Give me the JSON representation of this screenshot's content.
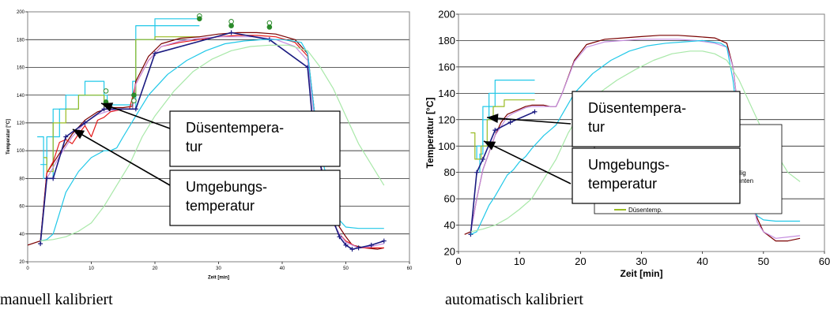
{
  "captions": {
    "left": "manuell kalibriert",
    "right": "automatisch kalibriert"
  },
  "chart_data": [
    {
      "type": "line",
      "xlabel": "Zeit [min]",
      "ylabel": "Temperatur [°C]",
      "xlim": [
        0,
        60
      ],
      "ylim": [
        20,
        200
      ],
      "xticks": [
        0,
        10,
        20,
        30,
        40,
        50,
        60
      ],
      "yticks": [
        20,
        40,
        60,
        80,
        100,
        120,
        140,
        160,
        180,
        200
      ],
      "grid": "horizontal",
      "annotations": [
        {
          "id": "duesentemperatur",
          "text": [
            "Düsentempera-",
            "tur"
          ]
        },
        {
          "id": "umgebungstemperatur",
          "text": [
            "Umgebungs-",
            "temperatur"
          ]
        }
      ],
      "colors": {
        "cyan": "#20c8e8",
        "olive": "#99bb22",
        "darkred": "#7a0000",
        "red": "#e41a1a",
        "violet": "#c58ee0",
        "navy": "#1a1a80",
        "lightgreen": "#a8e8a8",
        "markers": "#2a8a2a"
      },
      "series": [
        {
          "color": "cyan",
          "style": "step",
          "x": [
            1.5,
            2.5,
            2.5,
            4,
            4,
            6,
            6,
            9,
            9,
            12,
            12,
            16.5,
            16.5,
            17,
            17,
            20,
            20,
            27,
            27
          ],
          "y": [
            110,
            110,
            80,
            80,
            130,
            130,
            140,
            140,
            150,
            150,
            133,
            133,
            130,
            130,
            180,
            180,
            195,
            195,
            198
          ]
        },
        {
          "color": "cyan",
          "style": "step",
          "x": [
            2,
            3,
            3,
            5,
            5,
            8,
            8,
            12.5,
            12.5,
            16.5,
            16.5,
            17,
            17,
            27
          ],
          "y": [
            90,
            90,
            110,
            110,
            130,
            130,
            140,
            140,
            130,
            130,
            150,
            150,
            190,
            190
          ]
        },
        {
          "color": "olive",
          "style": "step",
          "x": [
            2.5,
            3,
            3,
            4,
            4,
            6,
            6,
            8,
            8,
            12,
            12,
            16.5,
            16.5,
            17,
            17,
            20,
            20,
            27
          ],
          "y": [
            95,
            95,
            85,
            85,
            120,
            120,
            130,
            130,
            140,
            140,
            130,
            130,
            140,
            140,
            180,
            180,
            182,
            182
          ]
        },
        {
          "color": "darkred",
          "x": [
            0,
            2,
            3,
            5,
            7,
            9,
            11,
            13,
            15,
            16.5,
            17,
            19,
            21,
            24,
            27,
            30,
            33,
            36,
            39,
            42,
            44,
            45,
            46,
            47,
            48,
            49,
            50,
            51,
            53,
            55,
            56
          ],
          "y": [
            32,
            35,
            84,
            98,
            112,
            122,
            128,
            131,
            131,
            132,
            150,
            168,
            177,
            181,
            182,
            184,
            185,
            185,
            184,
            180,
            170,
            130,
            90,
            70,
            55,
            45,
            38,
            32,
            30,
            29,
            30
          ]
        },
        {
          "color": "red",
          "x": [
            2,
            3,
            4,
            5,
            6,
            7,
            8,
            9,
            10,
            11,
            12,
            13,
            14,
            15,
            16,
            17,
            19,
            21,
            24,
            27,
            30,
            33,
            36,
            39,
            42,
            44,
            45,
            46,
            47,
            48,
            49,
            50,
            52,
            54,
            56
          ],
          "y": [
            33,
            84,
            92,
            106,
            108,
            105,
            112,
            118,
            110,
            122,
            124,
            128,
            129,
            130,
            130,
            148,
            165,
            175,
            178,
            180,
            182,
            183,
            183,
            182,
            178,
            168,
            130,
            90,
            60,
            48,
            40,
            35,
            30,
            30,
            30
          ]
        },
        {
          "color": "violet",
          "x": [
            2,
            3,
            5,
            7,
            9,
            11,
            13,
            15,
            16.5,
            17,
            19,
            21,
            24,
            27,
            30,
            33,
            36,
            39,
            42,
            44,
            45,
            46,
            47,
            48,
            49,
            50,
            52,
            54,
            56
          ],
          "y": [
            34,
            80,
            96,
            110,
            120,
            126,
            129,
            130,
            130,
            148,
            165,
            175,
            179,
            181,
            182,
            182,
            182,
            180,
            175,
            165,
            125,
            90,
            65,
            48,
            40,
            34,
            30,
            31,
            33
          ]
        },
        {
          "color": "navy",
          "markers": true,
          "x": [
            2,
            3,
            4,
            6,
            9,
            12,
            17,
            20,
            32,
            38,
            44,
            45,
            47,
            48,
            49,
            50,
            51,
            52,
            54,
            56
          ],
          "y": [
            33,
            80,
            80,
            110,
            120,
            130,
            130,
            170,
            185,
            180,
            160,
            110,
            70,
            50,
            38,
            32,
            29,
            30,
            32,
            35
          ]
        },
        {
          "color": "cyan",
          "x": [
            2,
            3,
            4,
            5,
            6,
            8,
            10,
            12,
            13,
            14,
            15,
            17,
            19,
            22,
            25,
            28,
            31,
            34,
            37,
            40,
            43,
            44,
            45,
            46,
            47,
            48,
            49,
            50,
            52,
            54,
            56
          ],
          "y": [
            35,
            36,
            40,
            55,
            70,
            85,
            95,
            100,
            100,
            102,
            110,
            125,
            140,
            155,
            165,
            172,
            177,
            179,
            180,
            180,
            178,
            170,
            130,
            100,
            80,
            60,
            50,
            45,
            44,
            44,
            44
          ]
        },
        {
          "color": "lightgreen",
          "x": [
            2,
            4,
            6,
            8,
            10,
            12,
            14,
            16,
            18,
            20,
            23,
            26,
            29,
            32,
            35,
            38,
            41,
            44,
            46,
            48,
            50,
            52,
            54,
            56
          ],
          "y": [
            35,
            36,
            38,
            42,
            48,
            60,
            75,
            90,
            110,
            125,
            143,
            157,
            166,
            172,
            175,
            176,
            176,
            172,
            160,
            145,
            125,
            105,
            90,
            75
          ]
        }
      ],
      "point_markers": [
        {
          "x": 12.3,
          "y": 143,
          "filled": false
        },
        {
          "x": 12.3,
          "y": 135,
          "filled": true
        },
        {
          "x": 16.7,
          "y": 140,
          "filled": true
        },
        {
          "x": 16.7,
          "y": 136,
          "filled": false
        },
        {
          "x": 27,
          "y": 197,
          "filled": false
        },
        {
          "x": 27,
          "y": 195,
          "filled": true
        },
        {
          "x": 32,
          "y": 193,
          "filled": false
        },
        {
          "x": 32,
          "y": 190,
          "filled": true
        },
        {
          "x": 38,
          "y": 192,
          "filled": false
        },
        {
          "x": 38,
          "y": 189,
          "filled": true
        }
      ]
    },
    {
      "type": "line",
      "xlabel": "Zeit [min]",
      "ylabel": "Temperatur [°C]",
      "xlim": [
        0,
        60
      ],
      "ylim": [
        20,
        200
      ],
      "xticks": [
        0,
        10,
        20,
        30,
        40,
        50,
        60
      ],
      "yticks": [
        20,
        40,
        60,
        80,
        100,
        120,
        140,
        160,
        180,
        200
      ],
      "grid": "horizontal",
      "legend_fragments": [
        "dig",
        "unten",
        "Düsentemp."
      ],
      "annotations": [
        {
          "id": "duesentemperatur",
          "text": [
            "Düsentempera-",
            "tur"
          ]
        },
        {
          "id": "umgebungstemperatur",
          "text": [
            "Umgebungs-",
            "temperatur"
          ]
        }
      ],
      "colors": {
        "cyan": "#20c8e8",
        "olive": "#99bb22",
        "darkred": "#7a0000",
        "violet": "#c58ee0",
        "navy": "#1a1a80",
        "lightgreen": "#a8e8a8"
      },
      "series": [
        {
          "color": "cyan",
          "style": "step",
          "x": [
            3.5,
            3.5,
            4,
            4,
            5,
            5,
            6,
            6,
            7,
            7,
            12.5
          ],
          "y": [
            80,
            94,
            94,
            130,
            130,
            140,
            140,
            150,
            150,
            150,
            150
          ]
        },
        {
          "color": "cyan",
          "style": "step",
          "x": [
            3,
            3,
            4,
            4,
            5,
            5,
            6,
            6,
            12.5
          ],
          "y": [
            90,
            100,
            100,
            120,
            120,
            130,
            130,
            140,
            140
          ]
        },
        {
          "color": "olive",
          "style": "step",
          "x": [
            2,
            2.7,
            2.7,
            3.7,
            3.7,
            4.7,
            4.7,
            5.7,
            5.7,
            7.5,
            7.5,
            12.5
          ],
          "y": [
            110,
            110,
            90,
            90,
            100,
            100,
            120,
            120,
            130,
            130,
            135,
            135
          ]
        },
        {
          "color": "darkred",
          "x": [
            1,
            2,
            3,
            4,
            5,
            6,
            7,
            8,
            9,
            10,
            11,
            12,
            13,
            14,
            15,
            16,
            17,
            19,
            21,
            24,
            27,
            30,
            33,
            36,
            39,
            42,
            44,
            45,
            46,
            47,
            48,
            49,
            50,
            52,
            54,
            56
          ],
          "y": [
            33,
            35,
            60,
            82,
            95,
            108,
            118,
            124,
            126,
            128,
            130,
            131,
            131,
            131,
            130,
            130,
            140,
            165,
            177,
            181,
            182,
            183,
            184,
            184,
            183,
            182,
            178,
            160,
            120,
            90,
            65,
            45,
            35,
            28,
            28,
            30
          ]
        },
        {
          "color": "violet",
          "x": [
            2,
            3,
            4,
            5,
            6,
            7,
            8,
            9,
            10,
            11,
            12,
            13,
            14,
            15,
            16,
            17,
            19,
            21,
            24,
            27,
            30,
            33,
            36,
            39,
            42,
            44,
            45,
            46,
            47,
            48,
            49,
            50,
            52,
            54,
            56
          ],
          "y": [
            34,
            60,
            82,
            95,
            108,
            115,
            122,
            125,
            127,
            129,
            130,
            130,
            130,
            130,
            130,
            140,
            164,
            175,
            179,
            180,
            181,
            181,
            181,
            180,
            178,
            175,
            160,
            120,
            85,
            60,
            42,
            35,
            30,
            31,
            32
          ]
        },
        {
          "color": "navy",
          "markers": true,
          "x": [
            2,
            3,
            4,
            6,
            8.5,
            12.5
          ],
          "y": [
            33,
            80,
            90,
            112,
            118,
            126
          ]
        },
        {
          "color": "cyan",
          "x": [
            2,
            3,
            4,
            5,
            6,
            7,
            8,
            9,
            10,
            11,
            12,
            13,
            14,
            15,
            16,
            17,
            19,
            22,
            25,
            28,
            31,
            34,
            37,
            40,
            43,
            44,
            45,
            46,
            47,
            48,
            49,
            50,
            52,
            54,
            56
          ],
          "y": [
            33,
            35,
            45,
            55,
            62,
            70,
            78,
            82,
            88,
            92,
            98,
            103,
            108,
            112,
            116,
            124,
            140,
            155,
            165,
            172,
            176,
            178,
            179,
            180,
            178,
            175,
            150,
            110,
            75,
            55,
            47,
            44,
            43,
            43,
            43
          ]
        },
        {
          "color": "lightgreen",
          "x": [
            2,
            4,
            6,
            8,
            10,
            12,
            14,
            16,
            18,
            20,
            23,
            26,
            29,
            32,
            35,
            38,
            40,
            42,
            44,
            46,
            48,
            50,
            52,
            54,
            56
          ],
          "y": [
            35,
            37,
            40,
            45,
            52,
            60,
            75,
            90,
            110,
            125,
            140,
            150,
            158,
            165,
            170,
            172,
            172,
            170,
            165,
            150,
            130,
            110,
            95,
            80,
            73
          ]
        }
      ]
    }
  ]
}
